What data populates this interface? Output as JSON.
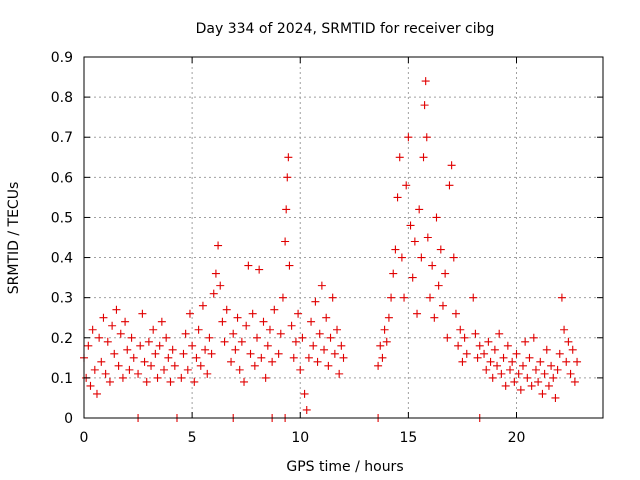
{
  "chart_data": {
    "type": "scatter",
    "title": "Day 334 of 2024, SRMTID for receiver cibg",
    "xlabel": "GPS time / hours",
    "ylabel": "SRMTID / TECUs",
    "xlim": [
      0,
      24
    ],
    "ylim": [
      0,
      0.9
    ],
    "xticks": [
      0,
      5,
      10,
      15,
      20
    ],
    "xtick_labels": [
      "0",
      "5",
      "10",
      "15",
      "20"
    ],
    "yticks": [
      0,
      0.1,
      0.2,
      0.3,
      0.4,
      0.5,
      0.6,
      0.7,
      0.8,
      0.9
    ],
    "ytick_labels": [
      "0",
      "0.1",
      "0.2",
      "0.3",
      "0.4",
      "0.5",
      "0.6",
      "0.7",
      "0.8",
      "0.9"
    ],
    "grid": true,
    "marker": "+",
    "color": "#e00000",
    "series": [
      {
        "name": "SRMTID",
        "points": [
          [
            0.0,
            0.15
          ],
          [
            0.1,
            0.1
          ],
          [
            0.2,
            0.18
          ],
          [
            0.3,
            0.08
          ],
          [
            0.4,
            0.22
          ],
          [
            0.5,
            0.12
          ],
          [
            0.6,
            0.06
          ],
          [
            0.7,
            0.2
          ],
          [
            0.8,
            0.14
          ],
          [
            0.9,
            0.25
          ],
          [
            1.0,
            0.11
          ],
          [
            1.1,
            0.19
          ],
          [
            1.2,
            0.09
          ],
          [
            1.3,
            0.23
          ],
          [
            1.4,
            0.16
          ],
          [
            1.5,
            0.27
          ],
          [
            1.6,
            0.13
          ],
          [
            1.7,
            0.21
          ],
          [
            1.8,
            0.1
          ],
          [
            1.9,
            0.24
          ],
          [
            2.0,
            0.17
          ],
          [
            2.1,
            0.12
          ],
          [
            2.2,
            0.2
          ],
          [
            2.3,
            0.15
          ],
          [
            2.5,
            0.11
          ],
          [
            2.6,
            0.18
          ],
          [
            2.7,
            0.26
          ],
          [
            2.8,
            0.14
          ],
          [
            2.9,
            0.09
          ],
          [
            3.0,
            0.19
          ],
          [
            3.1,
            0.13
          ],
          [
            3.2,
            0.22
          ],
          [
            3.3,
            0.16
          ],
          [
            3.4,
            0.1
          ],
          [
            3.5,
            0.18
          ],
          [
            3.6,
            0.24
          ],
          [
            3.7,
            0.12
          ],
          [
            3.8,
            0.2
          ],
          [
            3.9,
            0.15
          ],
          [
            4.0,
            0.09
          ],
          [
            4.1,
            0.17
          ],
          [
            4.2,
            0.13
          ],
          [
            4.5,
            0.1
          ],
          [
            4.6,
            0.16
          ],
          [
            4.7,
            0.21
          ],
          [
            4.8,
            0.12
          ],
          [
            4.9,
            0.26
          ],
          [
            5.0,
            0.18
          ],
          [
            5.1,
            0.09
          ],
          [
            5.2,
            0.15
          ],
          [
            5.3,
            0.22
          ],
          [
            5.4,
            0.13
          ],
          [
            5.5,
            0.28
          ],
          [
            5.6,
            0.17
          ],
          [
            5.7,
            0.11
          ],
          [
            5.8,
            0.2
          ],
          [
            5.9,
            0.16
          ],
          [
            6.0,
            0.31
          ],
          [
            6.1,
            0.36
          ],
          [
            6.2,
            0.43
          ],
          [
            6.3,
            0.33
          ],
          [
            6.4,
            0.24
          ],
          [
            6.5,
            0.19
          ],
          [
            6.6,
            0.27
          ],
          [
            6.8,
            0.14
          ],
          [
            6.9,
            0.21
          ],
          [
            7.0,
            0.17
          ],
          [
            7.1,
            0.25
          ],
          [
            7.2,
            0.12
          ],
          [
            7.3,
            0.19
          ],
          [
            7.4,
            0.09
          ],
          [
            7.5,
            0.23
          ],
          [
            7.6,
            0.38
          ],
          [
            7.7,
            0.16
          ],
          [
            7.8,
            0.26
          ],
          [
            7.9,
            0.13
          ],
          [
            8.0,
            0.2
          ],
          [
            8.1,
            0.37
          ],
          [
            8.2,
            0.15
          ],
          [
            8.3,
            0.24
          ],
          [
            8.4,
            0.1
          ],
          [
            8.5,
            0.18
          ],
          [
            8.6,
            0.22
          ],
          [
            8.7,
            0.14
          ],
          [
            8.8,
            0.27
          ],
          [
            9.0,
            0.16
          ],
          [
            9.1,
            0.21
          ],
          [
            9.2,
            0.3
          ],
          [
            9.3,
            0.44
          ],
          [
            9.35,
            0.52
          ],
          [
            9.4,
            0.6
          ],
          [
            9.45,
            0.65
          ],
          [
            9.5,
            0.38
          ],
          [
            9.6,
            0.23
          ],
          [
            9.7,
            0.15
          ],
          [
            9.8,
            0.19
          ],
          [
            9.9,
            0.26
          ],
          [
            10.0,
            0.12
          ],
          [
            10.1,
            0.2
          ],
          [
            10.2,
            0.06
          ],
          [
            10.3,
            0.02
          ],
          [
            10.4,
            0.15
          ],
          [
            10.5,
            0.24
          ],
          [
            10.6,
            0.18
          ],
          [
            10.7,
            0.29
          ],
          [
            10.8,
            0.14
          ],
          [
            10.9,
            0.21
          ],
          [
            11.0,
            0.33
          ],
          [
            11.1,
            0.17
          ],
          [
            11.2,
            0.25
          ],
          [
            11.3,
            0.13
          ],
          [
            11.4,
            0.2
          ],
          [
            11.5,
            0.3
          ],
          [
            11.6,
            0.16
          ],
          [
            11.7,
            0.22
          ],
          [
            11.8,
            0.11
          ],
          [
            11.9,
            0.18
          ],
          [
            12.0,
            0.15
          ],
          [
            13.6,
            0.13
          ],
          [
            13.7,
            0.18
          ],
          [
            13.8,
            0.15
          ],
          [
            13.9,
            0.22
          ],
          [
            14.0,
            0.19
          ],
          [
            14.1,
            0.25
          ],
          [
            14.2,
            0.3
          ],
          [
            14.3,
            0.36
          ],
          [
            14.4,
            0.42
          ],
          [
            14.5,
            0.55
          ],
          [
            14.6,
            0.65
          ],
          [
            14.7,
            0.4
          ],
          [
            14.8,
            0.3
          ],
          [
            14.9,
            0.58
          ],
          [
            15.0,
            0.7
          ],
          [
            15.1,
            0.48
          ],
          [
            15.2,
            0.35
          ],
          [
            15.3,
            0.44
          ],
          [
            15.4,
            0.26
          ],
          [
            15.5,
            0.52
          ],
          [
            15.6,
            0.4
          ],
          [
            15.7,
            0.65
          ],
          [
            15.75,
            0.78
          ],
          [
            15.8,
            0.84
          ],
          [
            15.85,
            0.7
          ],
          [
            15.9,
            0.45
          ],
          [
            16.0,
            0.3
          ],
          [
            16.1,
            0.38
          ],
          [
            16.2,
            0.25
          ],
          [
            16.3,
            0.5
          ],
          [
            16.4,
            0.33
          ],
          [
            16.5,
            0.42
          ],
          [
            16.6,
            0.28
          ],
          [
            16.7,
            0.36
          ],
          [
            16.8,
            0.2
          ],
          [
            16.9,
            0.58
          ],
          [
            17.0,
            0.63
          ],
          [
            17.1,
            0.4
          ],
          [
            17.2,
            0.26
          ],
          [
            17.3,
            0.18
          ],
          [
            17.4,
            0.22
          ],
          [
            17.5,
            0.14
          ],
          [
            17.6,
            0.2
          ],
          [
            17.7,
            0.16
          ],
          [
            18.0,
            0.3
          ],
          [
            18.1,
            0.21
          ],
          [
            18.2,
            0.15
          ],
          [
            18.3,
            0.18
          ],
          [
            18.5,
            0.16
          ],
          [
            18.6,
            0.12
          ],
          [
            18.7,
            0.19
          ],
          [
            18.8,
            0.14
          ],
          [
            18.9,
            0.1
          ],
          [
            19.0,
            0.17
          ],
          [
            19.1,
            0.13
          ],
          [
            19.2,
            0.21
          ],
          [
            19.3,
            0.11
          ],
          [
            19.4,
            0.15
          ],
          [
            19.5,
            0.08
          ],
          [
            19.6,
            0.18
          ],
          [
            19.7,
            0.12
          ],
          [
            19.8,
            0.14
          ],
          [
            19.9,
            0.09
          ],
          [
            20.0,
            0.16
          ],
          [
            20.1,
            0.11
          ],
          [
            20.2,
            0.07
          ],
          [
            20.3,
            0.13
          ],
          [
            20.4,
            0.19
          ],
          [
            20.5,
            0.1
          ],
          [
            20.6,
            0.15
          ],
          [
            20.7,
            0.08
          ],
          [
            20.8,
            0.2
          ],
          [
            20.9,
            0.12
          ],
          [
            21.0,
            0.09
          ],
          [
            21.1,
            0.14
          ],
          [
            21.2,
            0.06
          ],
          [
            21.3,
            0.11
          ],
          [
            21.4,
            0.17
          ],
          [
            21.5,
            0.08
          ],
          [
            21.6,
            0.13
          ],
          [
            21.7,
            0.1
          ],
          [
            21.8,
            0.05
          ],
          [
            21.9,
            0.12
          ],
          [
            22.0,
            0.16
          ],
          [
            22.1,
            0.3
          ],
          [
            22.2,
            0.22
          ],
          [
            22.3,
            0.14
          ],
          [
            22.4,
            0.19
          ],
          [
            22.5,
            0.11
          ],
          [
            22.6,
            0.17
          ],
          [
            22.7,
            0.09
          ],
          [
            22.8,
            0.14
          ],
          [
            2.5,
            0.0
          ],
          [
            4.3,
            0.0
          ],
          [
            6.9,
            0.0
          ],
          [
            8.7,
            0.0
          ],
          [
            9.3,
            0.0
          ],
          [
            13.6,
            0.0
          ],
          [
            18.3,
            0.0
          ]
        ]
      }
    ]
  }
}
